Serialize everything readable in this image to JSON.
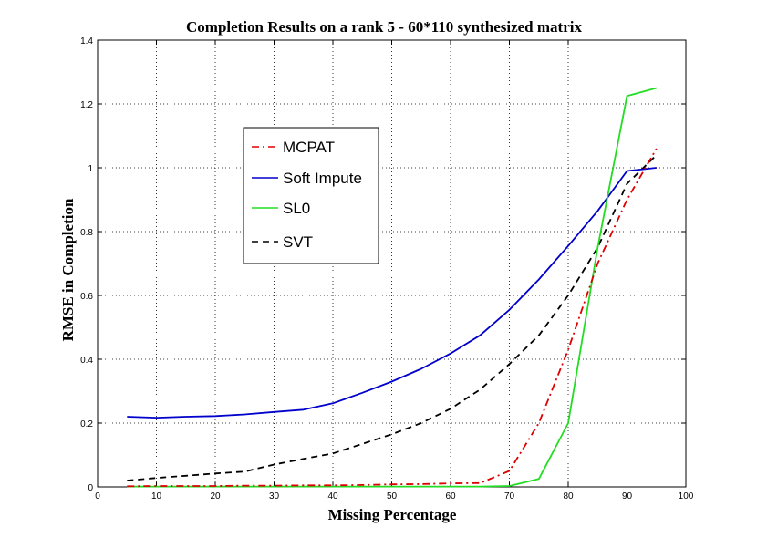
{
  "chart_data": {
    "type": "line",
    "title": "Completion Results on a rank 5 - 60*110 synthesized matrix",
    "xlabel": "Missing Percentage",
    "ylabel": "RMSE in Completion",
    "xlim": [
      0,
      100
    ],
    "ylim": [
      0,
      1.4
    ],
    "xticks": [
      "0",
      "10",
      "20",
      "30",
      "40",
      "50",
      "60",
      "70",
      "80",
      "90",
      "100"
    ],
    "yticks": [
      "0",
      "0.2",
      "0.4",
      "0.6",
      "0.8",
      "1",
      "1.2",
      "1.4"
    ],
    "grid": true,
    "legend_position": "upper-left-inside",
    "series": [
      {
        "name": "MCPAT",
        "color": "#dd0000",
        "style": "dash-dot",
        "x": [
          5,
          10,
          15,
          20,
          25,
          30,
          35,
          40,
          45,
          50,
          55,
          60,
          65,
          70,
          75,
          80,
          85,
          90,
          95
        ],
        "y": [
          0.002,
          0.003,
          0.003,
          0.003,
          0.004,
          0.004,
          0.005,
          0.005,
          0.006,
          0.008,
          0.009,
          0.011,
          0.012,
          0.05,
          0.2,
          0.43,
          0.7,
          0.9,
          1.06
        ]
      },
      {
        "name": "Soft Impute",
        "color": "#0000cc",
        "style": "solid",
        "x": [
          5,
          10,
          15,
          20,
          25,
          30,
          35,
          40,
          45,
          50,
          55,
          60,
          65,
          70,
          75,
          80,
          85,
          90,
          95
        ],
        "y": [
          0.22,
          0.217,
          0.22,
          0.222,
          0.227,
          0.235,
          0.242,
          0.262,
          0.295,
          0.33,
          0.37,
          0.418,
          0.475,
          0.555,
          0.65,
          0.755,
          0.865,
          0.99,
          1.0
        ]
      },
      {
        "name": "SL0",
        "color": "#22dd22",
        "style": "solid",
        "x": [
          5,
          10,
          15,
          20,
          25,
          30,
          35,
          40,
          45,
          50,
          55,
          60,
          65,
          70,
          75,
          80,
          85,
          90,
          95
        ],
        "y": [
          0.001,
          0.001,
          0.001,
          0.001,
          0.001,
          0.001,
          0.001,
          0.001,
          0.001,
          0.001,
          0.001,
          0.001,
          0.001,
          0.003,
          0.025,
          0.2,
          0.75,
          1.225,
          1.25
        ]
      },
      {
        "name": "SVT",
        "color": "#000000",
        "style": "dash",
        "x": [
          5,
          10,
          15,
          20,
          25,
          30,
          35,
          40,
          45,
          50,
          55,
          60,
          65,
          70,
          75,
          80,
          85,
          90,
          95
        ],
        "y": [
          0.02,
          0.028,
          0.035,
          0.042,
          0.048,
          0.07,
          0.088,
          0.105,
          0.135,
          0.165,
          0.2,
          0.245,
          0.305,
          0.385,
          0.475,
          0.6,
          0.75,
          0.95,
          1.04
        ]
      }
    ]
  }
}
